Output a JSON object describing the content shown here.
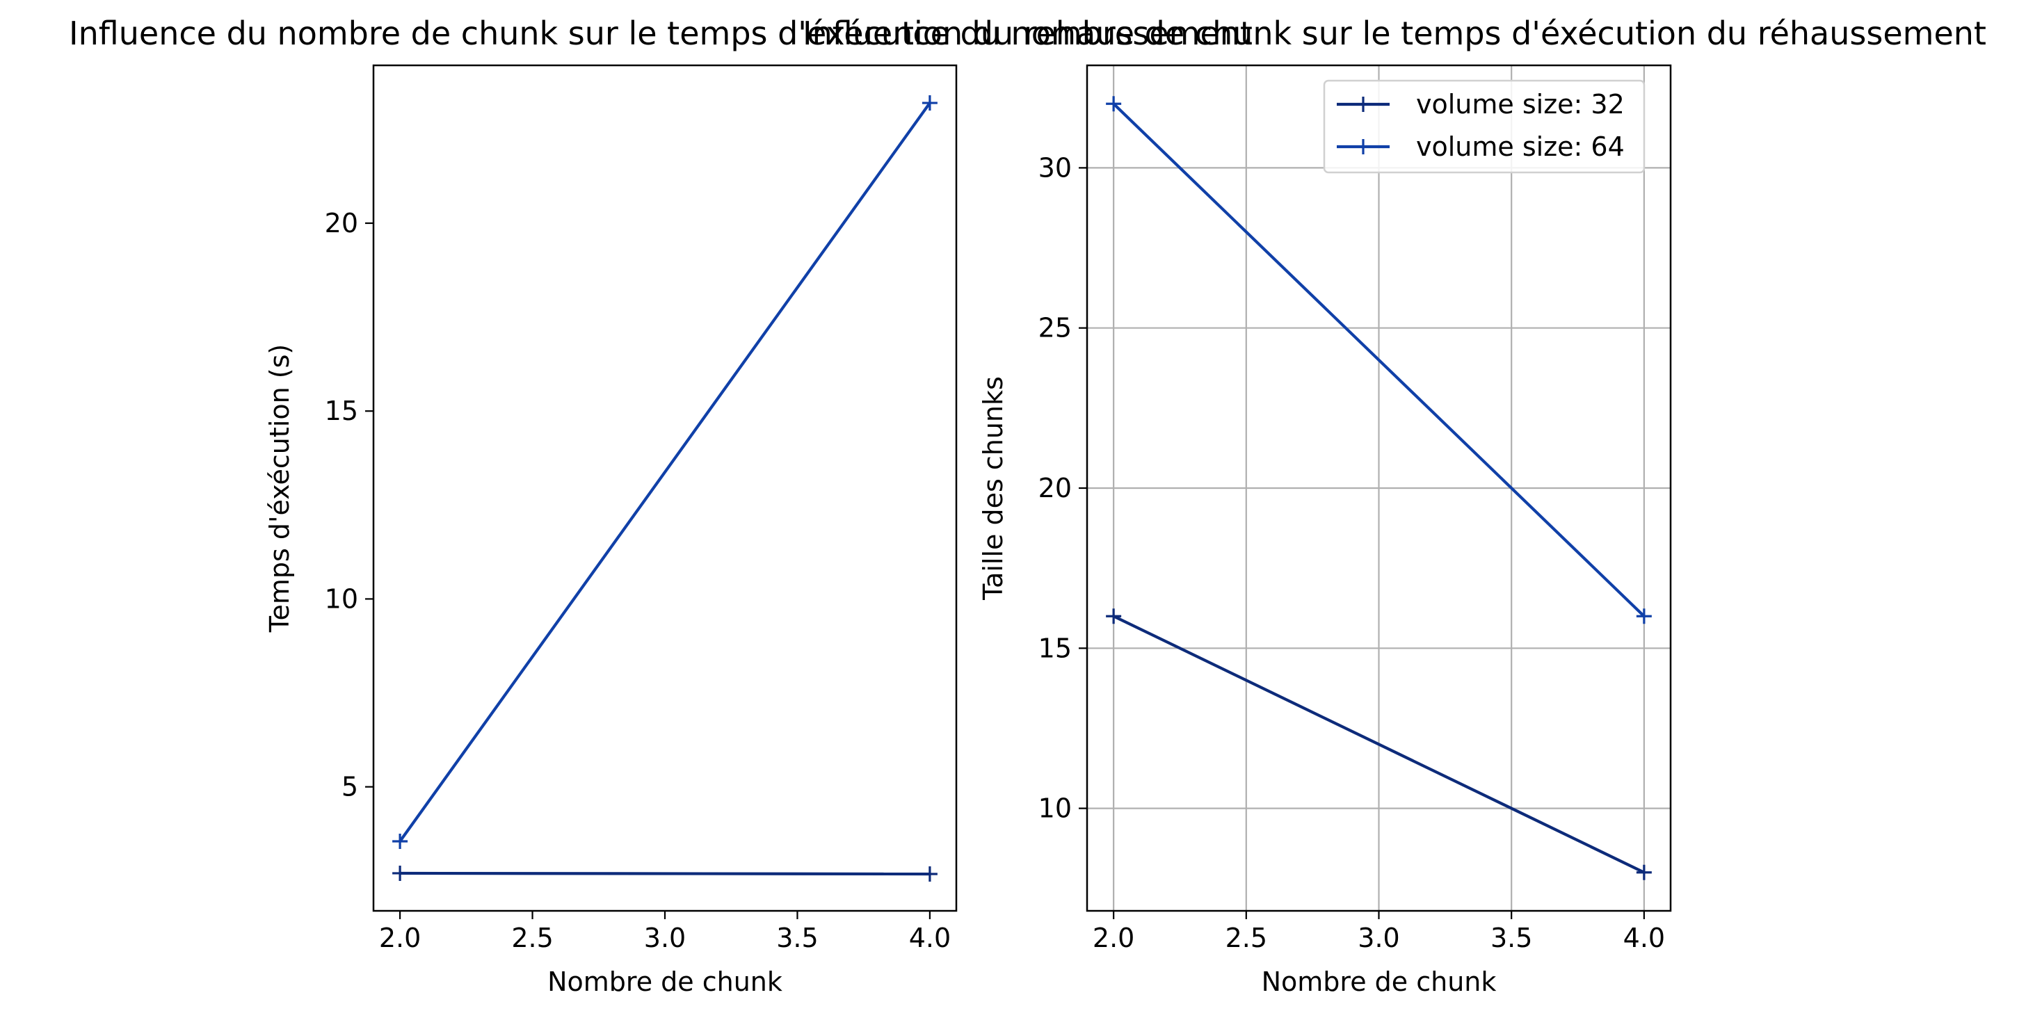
{
  "chart_data": [
    {
      "type": "line",
      "title": "Influence du nombre de chunk sur le temps d'éxécution du rehaussement",
      "xlabel": "Nombre de chunk",
      "ylabel": "Temps d'éxécution (s)",
      "xlim": [
        1.9,
        4.1
      ],
      "ylim": [
        1.7,
        24.2
      ],
      "xticks": [
        2.0,
        2.5,
        3.0,
        3.5,
        4.0
      ],
      "xtick_labels": [
        "2.0",
        "2.5",
        "3.0",
        "3.5",
        "4.0"
      ],
      "yticks": [
        5,
        10,
        15,
        20
      ],
      "ytick_labels": [
        "5",
        "10",
        "15",
        "20"
      ],
      "grid": false,
      "legend": null,
      "series": [
        {
          "x": [
            2,
            4
          ],
          "y": [
            2.7,
            2.68
          ],
          "color": "#0d2b7a",
          "marker": "+"
        },
        {
          "x": [
            2,
            4
          ],
          "y": [
            3.55,
            23.2
          ],
          "color": "#1040a8",
          "marker": "+"
        }
      ]
    },
    {
      "type": "line",
      "title": "Influence du nombre de chunk sur le temps d'éxécution du réhaussement",
      "xlabel": "Nombre de chunk",
      "ylabel": "Taille des chunks",
      "xlim": [
        1.9,
        4.1
      ],
      "ylim": [
        6.8,
        33.2
      ],
      "xticks": [
        2.0,
        2.5,
        3.0,
        3.5,
        4.0
      ],
      "xtick_labels": [
        "2.0",
        "2.5",
        "3.0",
        "3.5",
        "4.0"
      ],
      "yticks": [
        10,
        15,
        20,
        25,
        30
      ],
      "ytick_labels": [
        "10",
        "15",
        "20",
        "25",
        "30"
      ],
      "grid": true,
      "legend": "top-right",
      "series": [
        {
          "name": "volume size: 32",
          "x": [
            2,
            4
          ],
          "y": [
            16,
            8
          ],
          "color": "#0d2b7a",
          "marker": "+"
        },
        {
          "name": "volume size: 64",
          "x": [
            2,
            4
          ],
          "y": [
            32,
            16
          ],
          "color": "#1040a8",
          "marker": "+"
        }
      ]
    }
  ]
}
